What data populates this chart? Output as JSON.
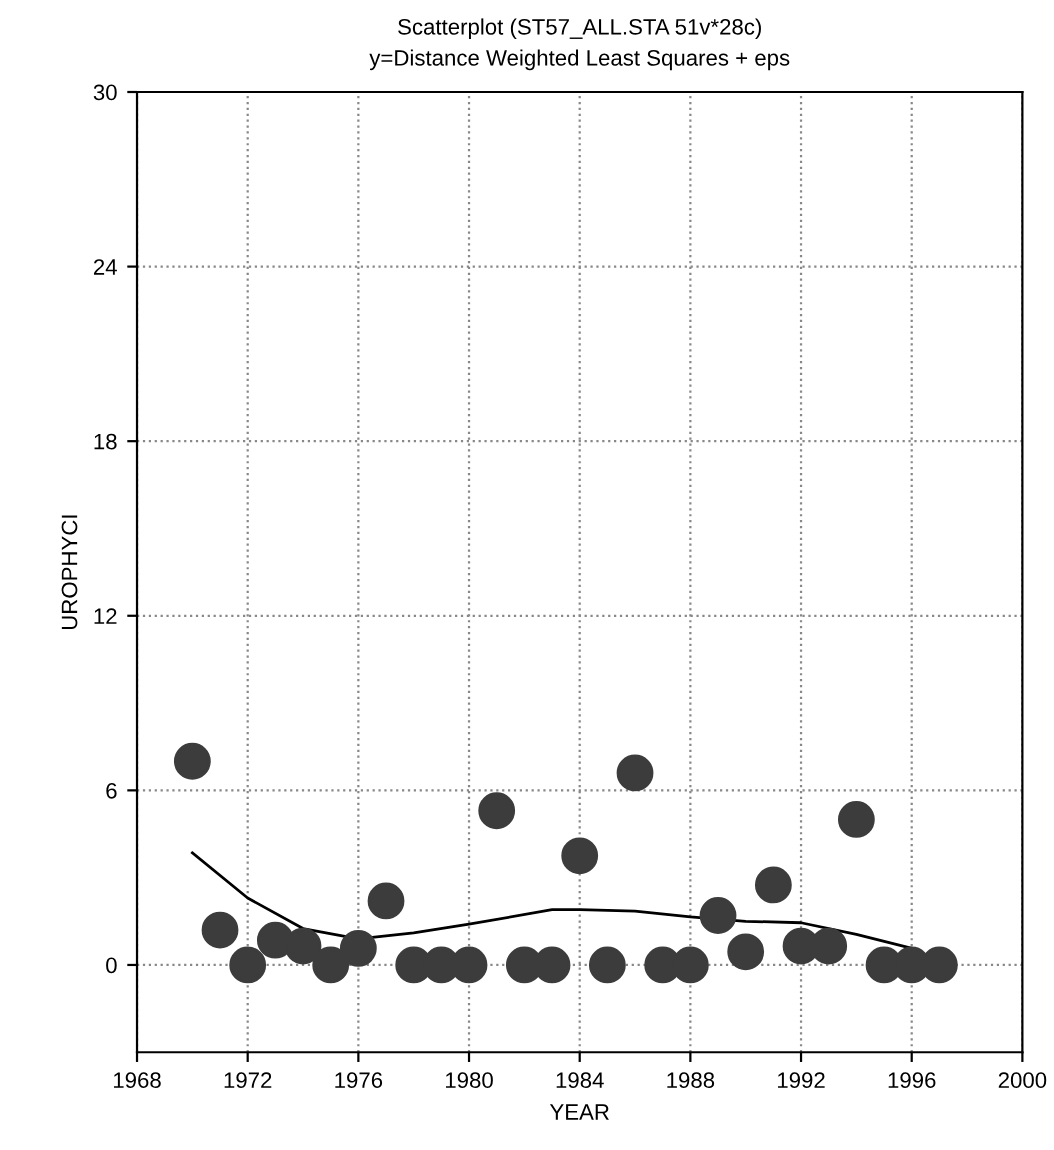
{
  "chart_data": {
    "type": "scatter",
    "title": "Scatterplot (ST57_ALL.STA 51v*28c)",
    "subtitle": "y=Distance Weighted Least Squares + eps",
    "xlabel": "YEAR",
    "ylabel": "UROPHYCI",
    "xlim": [
      1968,
      2000
    ],
    "xticks": [
      1968,
      1972,
      1976,
      1980,
      1984,
      1988,
      1992,
      1996,
      2000
    ],
    "ylim": [
      -3,
      30
    ],
    "yticks": [
      0,
      6,
      12,
      18,
      24,
      30
    ],
    "grid": true,
    "series": [
      {
        "marker": "circle",
        "color": "#3c3c3c",
        "x": [
          1970,
          1971,
          1972,
          1973,
          1974,
          1975,
          1976,
          1977,
          1978,
          1979,
          1980,
          1981,
          1982,
          1983,
          1984,
          1985,
          1986,
          1987,
          1988,
          1989,
          1990,
          1991,
          1992,
          1993,
          1994,
          1995,
          1996,
          1997
        ],
        "values": [
          7.0,
          1.2,
          0,
          0.85,
          0.65,
          0,
          0.57,
          2.2,
          0,
          0,
          0,
          5.3,
          0,
          0,
          3.75,
          0,
          6.6,
          0,
          0,
          1.7,
          0.45,
          2.75,
          0.65,
          0.65,
          5.0,
          0,
          0,
          0
        ]
      },
      {
        "type": "line",
        "marker": "none",
        "color": "#000000",
        "x": [
          1970,
          1972,
          1974,
          1976,
          1978,
          1980,
          1983,
          1984,
          1986,
          1988,
          1990,
          1992,
          1994,
          1996
        ],
        "values": [
          3.85,
          2.3,
          1.25,
          0.9,
          1.1,
          1.4,
          1.9,
          1.9,
          1.85,
          1.65,
          1.5,
          1.45,
          1.05,
          0.57
        ]
      }
    ]
  }
}
